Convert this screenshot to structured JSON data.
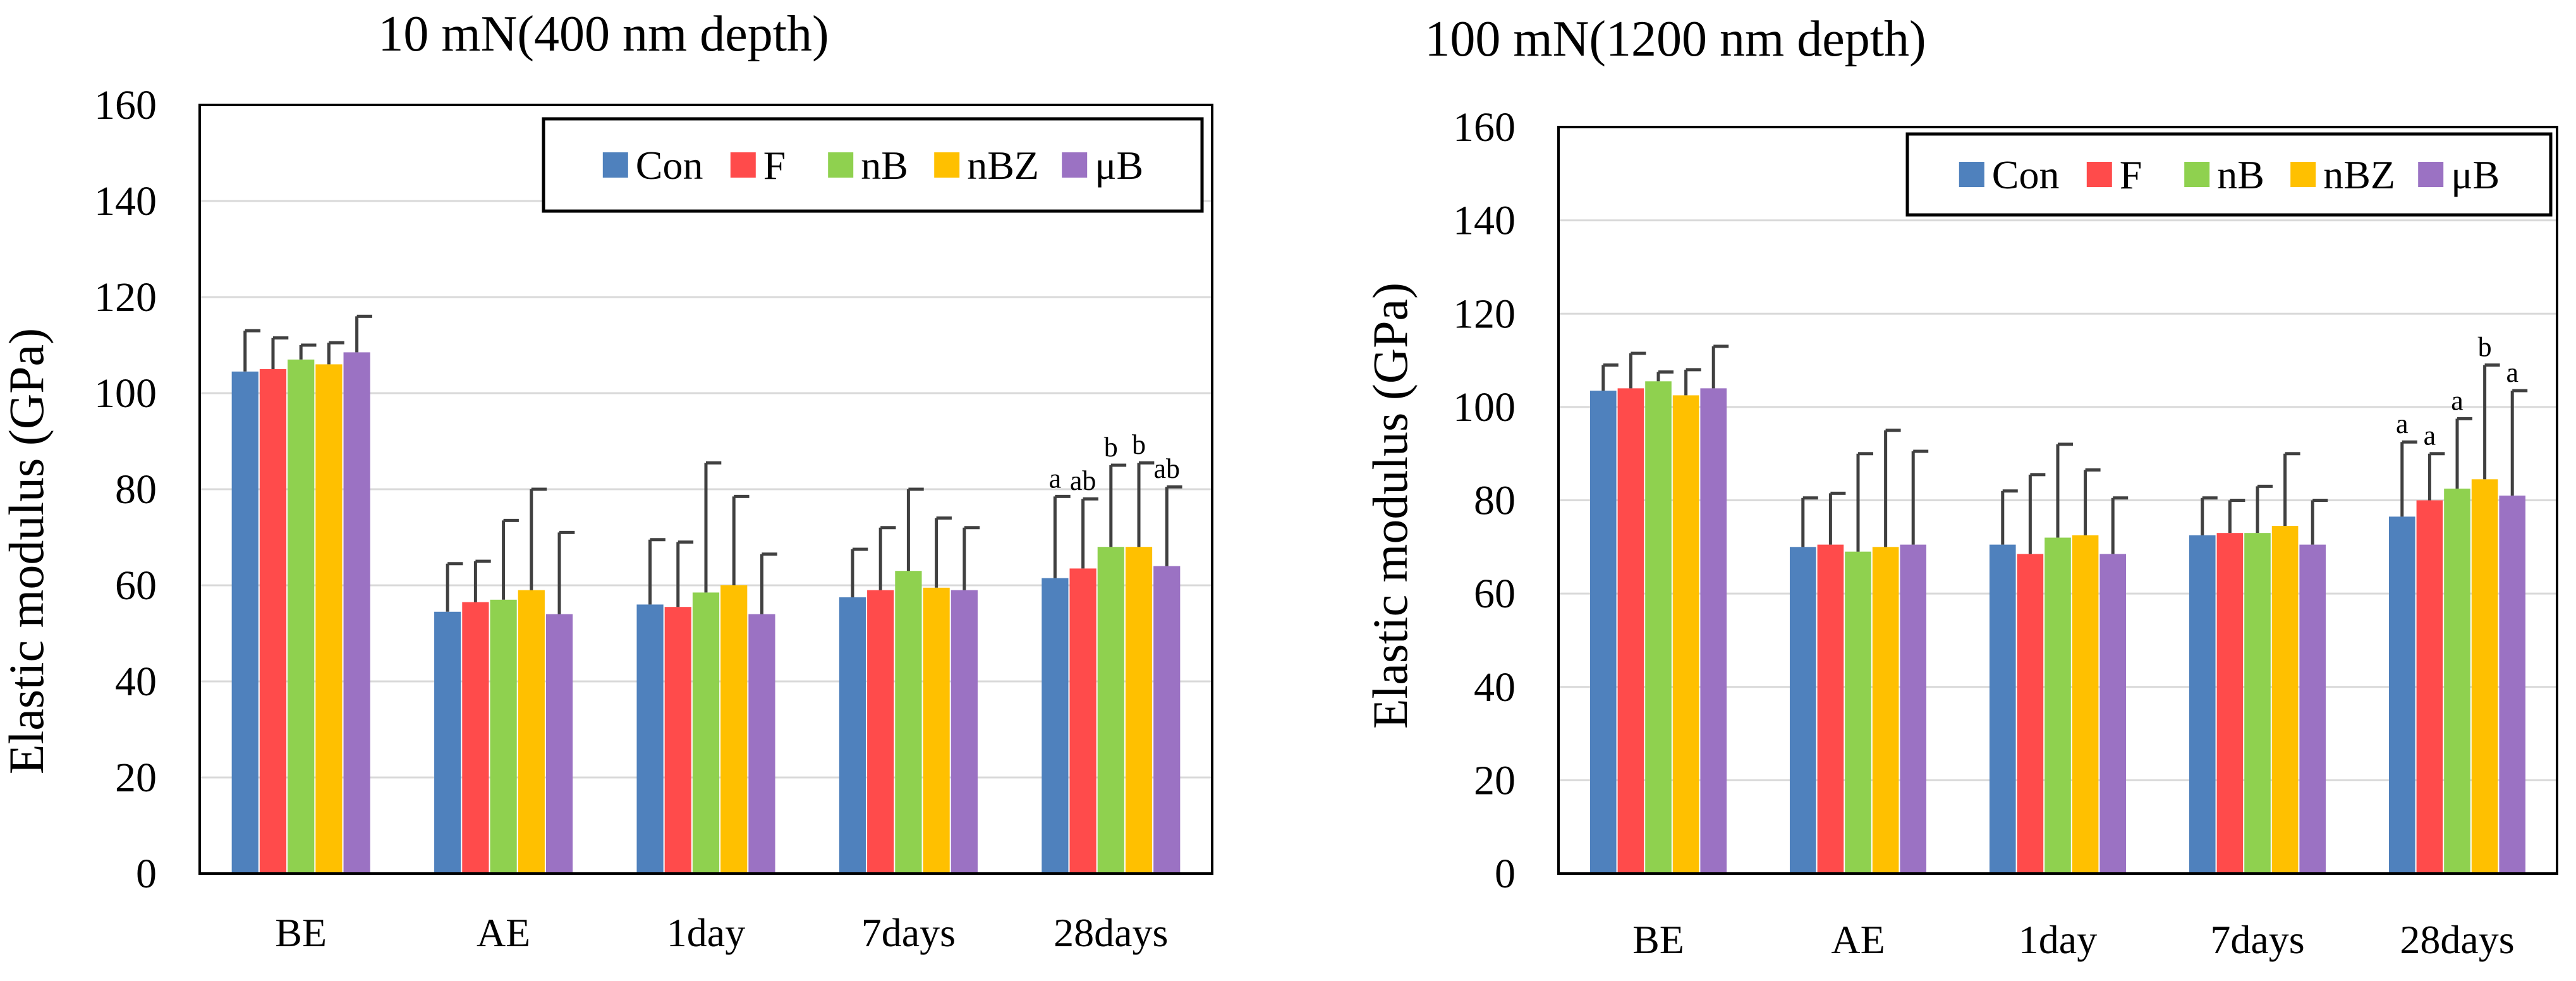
{
  "legend_series": [
    "Con",
    "F",
    "nB",
    "nBZ",
    "μB"
  ],
  "colors": {
    "Con": "#4F81BD",
    "F": "#FF4B4B",
    "nB": "#8FD14F",
    "nBZ": "#FFC000",
    "μB": "#9B72C3"
  },
  "chart_data": [
    {
      "type": "bar",
      "title": "10 mN(400 nm depth)",
      "xlabel": "",
      "ylabel": "Elastic modulus (GPa)",
      "ylim": [
        0,
        160
      ],
      "yticks": [
        0,
        20,
        40,
        60,
        80,
        100,
        120,
        140,
        160
      ],
      "grid": true,
      "legend_position": "top-right",
      "categories": [
        "BE",
        "AE",
        "1day",
        "7days",
        "28days"
      ],
      "series": [
        {
          "name": "Con",
          "values": [
            104.5,
            54.5,
            56,
            57.5,
            61.5
          ],
          "errors": [
            8.5,
            10,
            13.5,
            10,
            17
          ]
        },
        {
          "name": "F",
          "values": [
            105,
            56.5,
            55.5,
            59,
            63.5
          ],
          "errors": [
            6.5,
            8.5,
            13.5,
            13,
            14.5
          ]
        },
        {
          "name": "nB",
          "values": [
            107,
            57,
            58.5,
            63,
            68
          ],
          "errors": [
            3,
            16.5,
            27,
            17,
            17
          ]
        },
        {
          "name": "nBZ",
          "values": [
            106,
            59,
            60,
            59.5,
            68
          ],
          "errors": [
            4.5,
            21,
            18.5,
            14.5,
            17.5
          ]
        },
        {
          "name": "μB",
          "values": [
            108.5,
            54,
            54,
            59,
            64
          ],
          "errors": [
            7.5,
            17,
            12.5,
            13,
            16.5
          ]
        }
      ],
      "annotations": [
        {
          "category": "28days",
          "series": "Con",
          "text": "a"
        },
        {
          "category": "28days",
          "series": "F",
          "text": "ab"
        },
        {
          "category": "28days",
          "series": "nB",
          "text": "b"
        },
        {
          "category": "28days",
          "series": "nBZ",
          "text": "b"
        },
        {
          "category": "28days",
          "series": "μB",
          "text": "ab"
        }
      ]
    },
    {
      "type": "bar",
      "title": "100 mN(1200 nm depth)",
      "xlabel": "",
      "ylabel": "Elastic modulus (GPa)",
      "ylim": [
        0,
        160
      ],
      "yticks": [
        0,
        20,
        40,
        60,
        80,
        100,
        120,
        140,
        160
      ],
      "grid": true,
      "legend_position": "top-right",
      "categories": [
        "BE",
        "AE",
        "1day",
        "7days",
        "28days"
      ],
      "series": [
        {
          "name": "Con",
          "values": [
            103.5,
            70,
            70.5,
            72.5,
            76.5
          ],
          "errors": [
            5.5,
            10.5,
            11.5,
            8,
            16
          ]
        },
        {
          "name": "F",
          "values": [
            104,
            70.5,
            68.5,
            73,
            80
          ],
          "errors": [
            7.5,
            11,
            17,
            7,
            10
          ]
        },
        {
          "name": "nB",
          "values": [
            105.5,
            69,
            72,
            73,
            82.5
          ],
          "errors": [
            2,
            21,
            20,
            10,
            15
          ]
        },
        {
          "name": "nBZ",
          "values": [
            102.5,
            70,
            72.5,
            74.5,
            84.5
          ],
          "errors": [
            5.5,
            25,
            14,
            15.5,
            24.5
          ]
        },
        {
          "name": "μB",
          "values": [
            104,
            70.5,
            68.5,
            70.5,
            81
          ],
          "errors": [
            9,
            20,
            12,
            9.5,
            22.5
          ]
        }
      ],
      "annotations": [
        {
          "category": "28days",
          "series": "Con",
          "text": "a"
        },
        {
          "category": "28days",
          "series": "F",
          "text": "a"
        },
        {
          "category": "28days",
          "series": "nB",
          "text": "a"
        },
        {
          "category": "28days",
          "series": "nBZ",
          "text": "b"
        },
        {
          "category": "28days",
          "series": "μB",
          "text": "a"
        }
      ]
    }
  ]
}
